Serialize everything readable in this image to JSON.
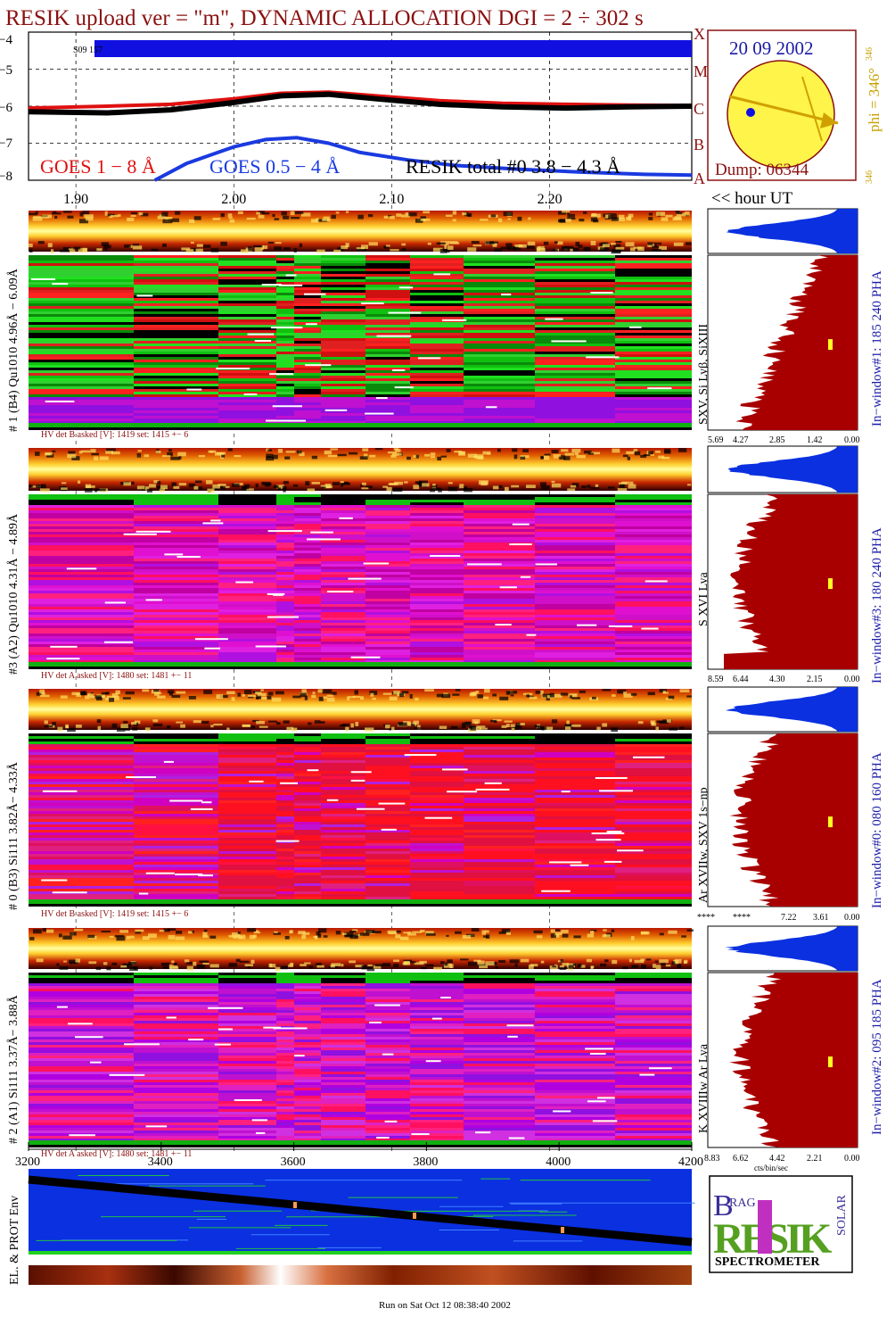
{
  "title": "RESIK upload ver = \"m\", DYNAMIC ALLOCATION  DGI =   2 ÷ 302 s",
  "colors": {
    "goes_long": "#e01010",
    "goes_short": "#1a3ae0",
    "resik_total": "#000000",
    "maroon": "#8b1010",
    "navy": "#1a1aa8",
    "gold": "#c8a000",
    "histogram": "#a80000",
    "pha": "#0a30e0",
    "sun": "#fff44a"
  },
  "lightcurve": {
    "y_ticks": [
      "−4",
      "−5",
      "−6",
      "−7",
      "−8"
    ],
    "goes_class_letters": [
      "X",
      "M",
      "C",
      "B",
      "A"
    ],
    "legend_goes_long": "GOES 1 − 8 Å",
    "legend_goes_short": "GOES 0.5 − 4 Å",
    "legend_resik": "RESIK total #0  3.8 − 4.3 Å",
    "bar_label": "S09 157"
  },
  "chart_data": {
    "type": "line",
    "title": "RESIK upload ver = \"m\", DYNAMIC ALLOCATION  DGI =   2 ÷ 302 s",
    "xlabel": "<< hour UT",
    "ylabel": "",
    "xlim": [
      1.87,
      2.29
    ],
    "ylim": [
      -8,
      -4
    ],
    "x_ticks": [
      "1.90",
      "2.00",
      "2.10",
      "2.20"
    ],
    "series": [
      {
        "name": "GOES 1 − 8 Å",
        "x": [
          1.87,
          1.92,
          1.96,
          2.0,
          2.03,
          2.06,
          2.09,
          2.13,
          2.17,
          2.21,
          2.25,
          2.29
        ],
        "values": [
          -6.05,
          -6.0,
          -5.95,
          -5.8,
          -5.65,
          -5.62,
          -5.72,
          -5.85,
          -5.92,
          -5.95,
          -5.97,
          -5.98
        ]
      },
      {
        "name": "GOES 0.5 − 4 Å",
        "x": [
          1.95,
          1.97,
          2.0,
          2.02,
          2.04,
          2.06,
          2.08,
          2.11,
          2.14,
          2.18,
          2.22,
          2.26,
          2.29
        ],
        "values": [
          -8.0,
          -7.55,
          -7.1,
          -6.9,
          -6.85,
          -7.0,
          -7.25,
          -7.45,
          -7.6,
          -7.7,
          -7.78,
          -7.84,
          -7.86
        ]
      },
      {
        "name": "RESIK total #0  3.8 − 4.3 Å",
        "x": [
          1.87,
          1.92,
          1.96,
          2.0,
          2.03,
          2.06,
          2.09,
          2.13,
          2.17,
          2.21,
          2.25,
          2.29
        ],
        "values": [
          -6.15,
          -6.18,
          -6.1,
          -5.9,
          -5.72,
          -5.68,
          -5.8,
          -5.95,
          -6.02,
          -6.05,
          -6.02,
          -6.0
        ]
      }
    ]
  },
  "sun": {
    "date": "20 09 2002",
    "dump": "Dump: 06344",
    "phi_label": "phi = 346°",
    "phi_small": "346",
    "phi_small_bottom": "346"
  },
  "hour_ut_label": "<< hour UT",
  "panels": [
    {
      "left_label": "# 1 (B4) Qu1010 4.96Å − 6.09Å",
      "line_label": "SXV, Si Lyβ, SiXIII",
      "window_label": "In−window#1:  185 240 PHA",
      "hv_text": "HV det B asked [V]:  1419 set:  1415 +−     6",
      "axis_labels": [
        "5.69",
        "4.27",
        "2.85",
        "1.42",
        "0.00"
      ]
    },
    {
      "left_label": "#3 (A2) Qu1010  4.31Å − 4.89Å",
      "line_label": "S XVI Lya",
      "window_label": "In−window#3:  180 240 PHA",
      "hv_text": "HV det A asked [V]:  1480 set:  1481 +−    11",
      "axis_labels": [
        "8.59",
        "6.44",
        "4.30",
        "2.15",
        "0.00"
      ]
    },
    {
      "left_label": "# 0 (B3) Si111  3.82Å− 4.33Å",
      "line_label": "Ar XVIIw,  SXV 1s−np",
      "window_label": "In−window#0:  080 160 PHA",
      "hv_text": "HV det B asked [V]:  1419 set:  1415 +−     6",
      "axis_labels": [
        "****",
        "****",
        "7.22",
        "3.61",
        "0.00"
      ]
    },
    {
      "left_label": "# 2 (A1) Si111  3.37Å− 3.88Å",
      "line_label": "K XVIIIw  Ar Lya",
      "window_label": "In−window#2:  095 185 PHA",
      "hv_text": "HV det A asked [V]:  1480 set:  1481 +−    11",
      "axis_labels": [
        "8.83",
        "6.62",
        "4.42",
        "2.21",
        "0.00"
      ]
    }
  ],
  "histogram_unit": "cts/bin/sec",
  "bottom_axis": [
    "3200",
    "3400",
    "3600",
    "3800",
    "4000",
    "4200"
  ],
  "env_label": "EL. & PROT Env",
  "logo": {
    "main": "RESIK",
    "spectrometer": "SPECTROMETER",
    "b": "B",
    "rag": "RAG",
    "solar": "SOLAR"
  },
  "footer": "Run on Sat Oct 12 08:38:40 2002"
}
